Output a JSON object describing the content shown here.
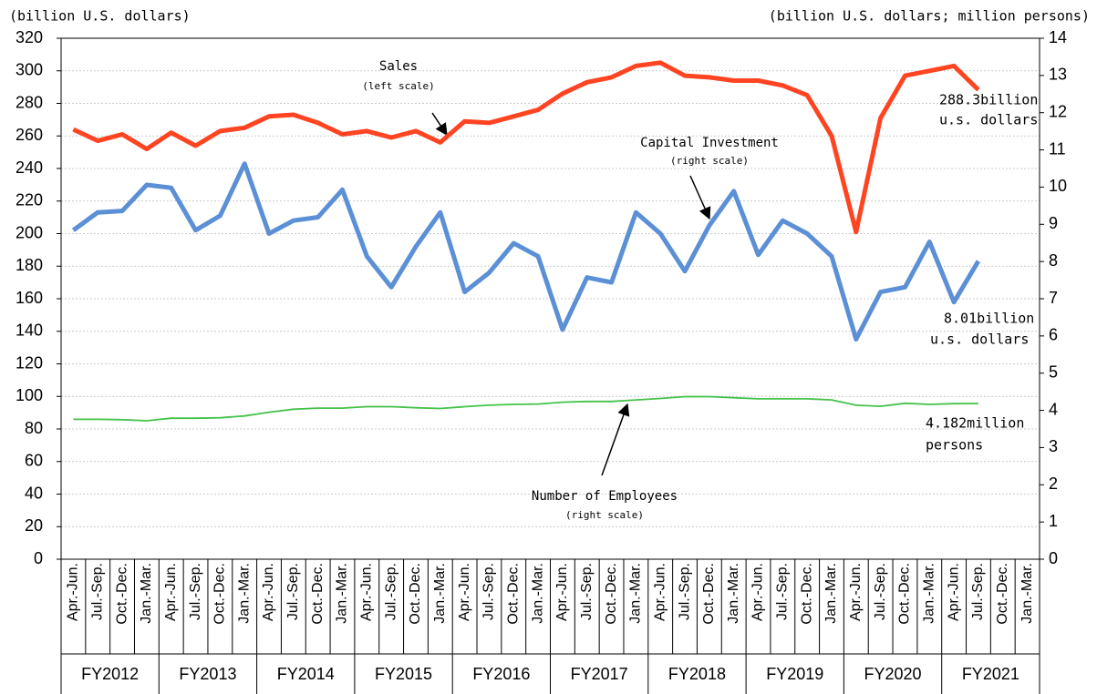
{
  "chart_data": {
    "type": "line",
    "left_unit": "(billion U.S. dollars)",
    "right_unit": "(billion U.S. dollars; million persons)",
    "categories": [
      "Apr.-Jun.",
      "Jul.-Sep.",
      "Oct.-Dec.",
      "Jan.-Mar.",
      "Apr.-Jun.",
      "Jul.-Sep.",
      "Oct.-Dec.",
      "Jan.-Mar.",
      "Apr.-Jun.",
      "Jul.-Sep.",
      "Oct.-Dec.",
      "Jan.-Mar.",
      "Apr.-Jun.",
      "Jul.-Sep.",
      "Oct.-Dec.",
      "Jan.-Mar.",
      "Apr.-Jun.",
      "Jul.-Sep.",
      "Oct.-Dec.",
      "Jan.-Mar.",
      "Apr.-Jun.",
      "Jul.-Sep.",
      "Oct.-Dec.",
      "Jan.-Mar.",
      "Apr.-Jun.",
      "Jul.-Sep.",
      "Oct.-Dec.",
      "Jan.-Mar.",
      "Apr.-Jun.",
      "Jul.-Sep.",
      "Oct.-Dec.",
      "Jan.-Mar.",
      "Apr.-Jun.",
      "Jul.-Sep.",
      "Oct.-Dec.",
      "Jan.-Mar.",
      "Apr.-Jun.",
      "Jul.-Sep.",
      "Oct.-Dec.",
      "Jan.-Mar."
    ],
    "fiscal_years": [
      "FY2012",
      "FY2013",
      "FY2014",
      "FY2015",
      "FY2016",
      "FY2017",
      "FY2018",
      "FY2019",
      "FY2020",
      "FY2021"
    ],
    "series": [
      {
        "name": "Sales",
        "color": "#ff4422",
        "axis": "y",
        "width": 5,
        "values": [
          264,
          257,
          261,
          252,
          262,
          254,
          263,
          265,
          272,
          273,
          268,
          261,
          263,
          259,
          263,
          256,
          269,
          268,
          272,
          276,
          286,
          293,
          296,
          303,
          305,
          297,
          296,
          294,
          294,
          291,
          285,
          260,
          201,
          271,
          297,
          300,
          303,
          288.3,
          null,
          null
        ]
      },
      {
        "name": "Capital Investment",
        "color": "#5b8fd6",
        "axis": "y2",
        "width": 5,
        "values": [
          8.84,
          9.32,
          9.36,
          10.06,
          9.98,
          8.84,
          9.23,
          10.63,
          8.75,
          9.1,
          9.19,
          9.93,
          8.14,
          7.31,
          8.4,
          9.32,
          7.18,
          7.7,
          8.49,
          8.14,
          6.17,
          7.57,
          7.44,
          9.32,
          8.75,
          7.74,
          8.97,
          9.89,
          8.18,
          9.1,
          8.75,
          8.14,
          5.91,
          7.18,
          7.31,
          8.53,
          6.91,
          8.01,
          null,
          null
        ]
      },
      {
        "name": "Number of Employees",
        "color": "#44c24a",
        "axis": "y2",
        "width": 1.8,
        "values": [
          3.76,
          3.76,
          3.75,
          3.72,
          3.79,
          3.79,
          3.8,
          3.85,
          3.95,
          4.03,
          4.06,
          4.06,
          4.1,
          4.1,
          4.07,
          4.05,
          4.1,
          4.14,
          4.16,
          4.17,
          4.22,
          4.24,
          4.24,
          4.28,
          4.32,
          4.37,
          4.37,
          4.34,
          4.31,
          4.31,
          4.31,
          4.28,
          4.14,
          4.11,
          4.19,
          4.16,
          4.18,
          4.182,
          null,
          null
        ]
      }
    ],
    "annotations": [
      "(left scale)",
      "(right scale)",
      "(right scale)",
      "288.3billion",
      "u.s. dollars",
      "8.01billion",
      "u.s. dollars",
      "4.182million",
      "persons"
    ],
    "ylim": [
      0,
      320
    ],
    "yticks": [
      0,
      20,
      40,
      60,
      80,
      100,
      120,
      140,
      160,
      180,
      200,
      220,
      240,
      260,
      280,
      300,
      320
    ],
    "y2lim": [
      0,
      14
    ],
    "y2ticks": [
      0,
      1,
      2,
      3,
      4,
      5,
      6,
      7,
      8,
      9,
      10,
      11,
      12,
      13,
      14
    ],
    "grid": true
  }
}
